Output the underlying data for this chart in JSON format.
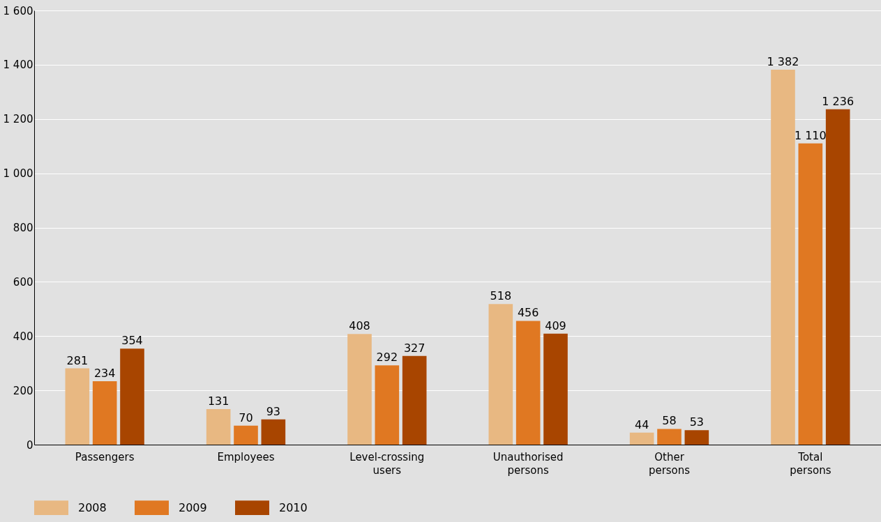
{
  "chart_data": {
    "type": "bar",
    "categories": [
      "Passengers",
      "Employees",
      "Level-crossing users",
      "Unauthorised persons",
      "Other persons",
      "Total persons"
    ],
    "series": [
      {
        "name": "2008",
        "color": "#e8b882",
        "values": [
          281,
          131,
          408,
          518,
          44,
          1382
        ],
        "value_labels": [
          "281",
          "131",
          "408",
          "518",
          "44",
          "1 382"
        ]
      },
      {
        "name": "2009",
        "color": "#e07822",
        "values": [
          234,
          70,
          292,
          456,
          58,
          1110
        ],
        "value_labels": [
          "234",
          "70",
          "292",
          "456",
          "58",
          "1 110"
        ]
      },
      {
        "name": "2010",
        "color": "#a84500",
        "values": [
          354,
          93,
          327,
          409,
          53,
          1236
        ],
        "value_labels": [
          "354",
          "93",
          "327",
          "409",
          "53",
          "1 236"
        ]
      }
    ],
    "ylim": [
      0,
      1600
    ],
    "yticks": [
      0,
      200,
      400,
      600,
      800,
      {
        "value": 1000,
        "label": "1 000"
      },
      {
        "value": 1200,
        "label": "1 200"
      },
      {
        "value": 1400,
        "label": "1 400"
      },
      {
        "value": 1600,
        "label": "1 600"
      }
    ],
    "grid": "y",
    "legend": "bottom"
  }
}
